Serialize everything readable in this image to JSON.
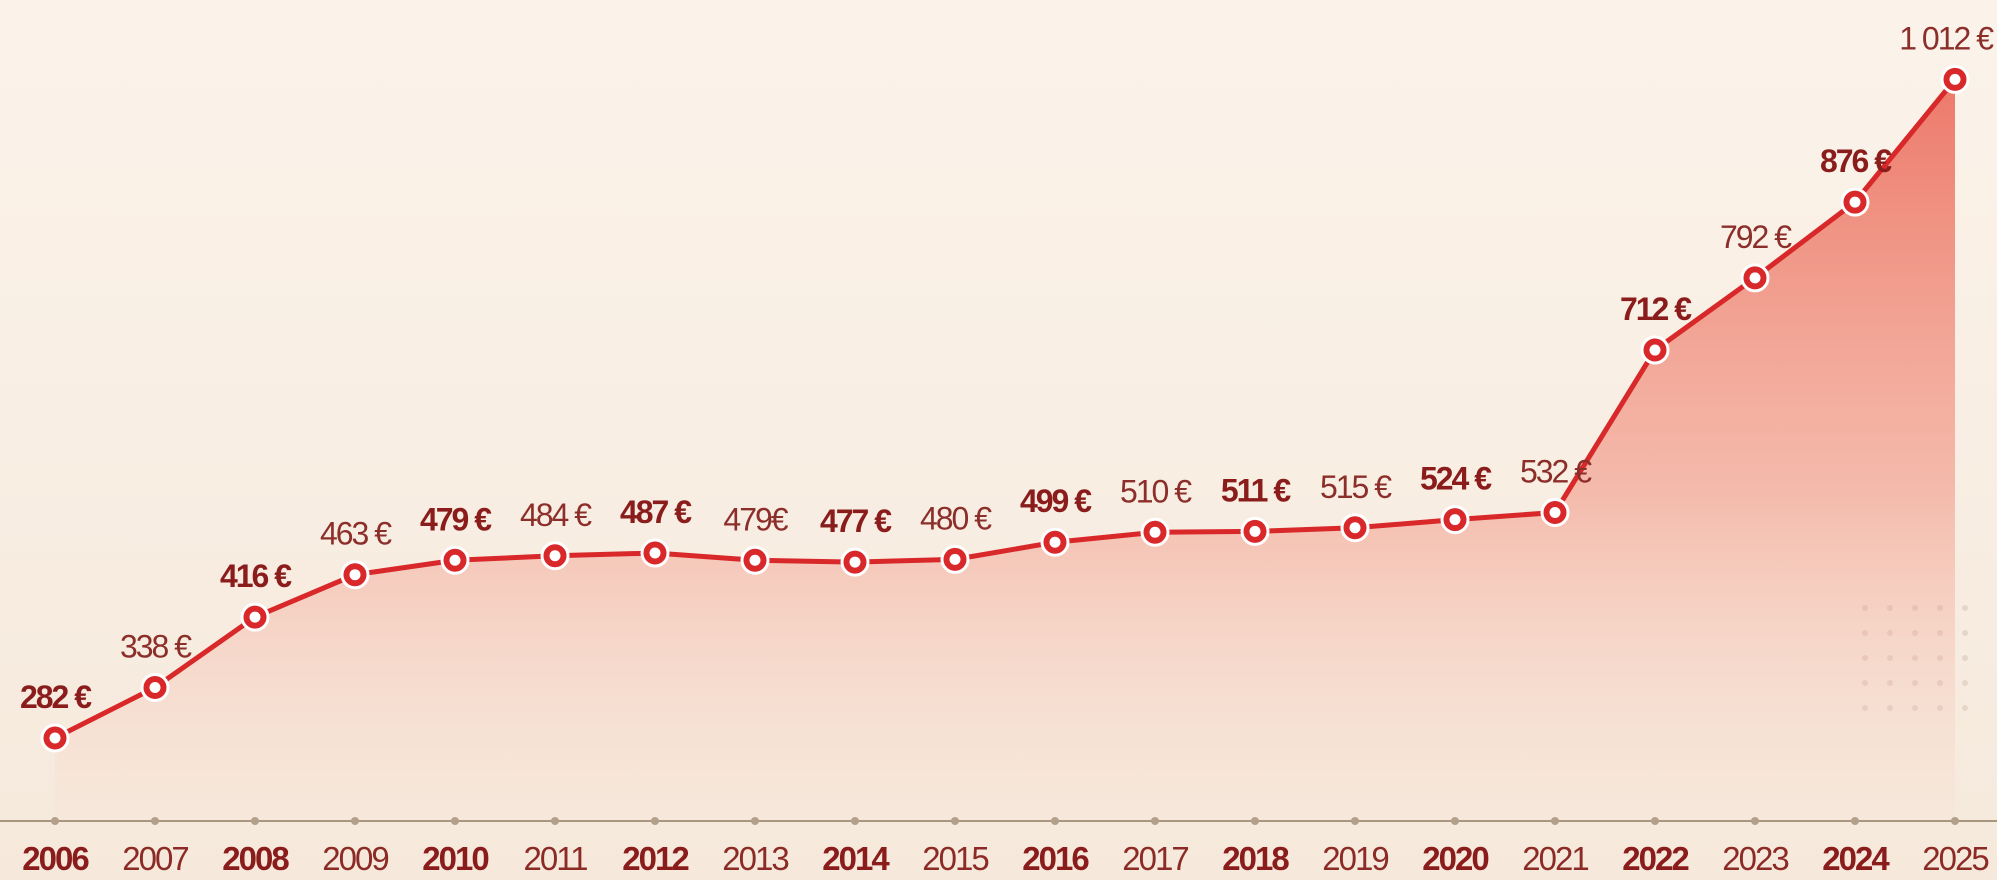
{
  "chart_data": {
    "type": "line",
    "categories": [
      "2006",
      "2007",
      "2008",
      "2009",
      "2010",
      "2011",
      "2012",
      "2013",
      "2014",
      "2015",
      "2016",
      "2017",
      "2018",
      "2019",
      "2020",
      "2021",
      "2022",
      "2023",
      "2024",
      "2025"
    ],
    "values": [
      282,
      338,
      416,
      463,
      479,
      484,
      487,
      479,
      477,
      480,
      499,
      510,
      511,
      515,
      524,
      532,
      712,
      792,
      876,
      1012
    ],
    "value_labels": [
      "282 €",
      "338 €",
      "416 €",
      "463 €",
      "479 €",
      "484 €",
      "487 €",
      "479€",
      "477 €",
      "480 €",
      "499 €",
      "510 €",
      "511 €",
      "515 €",
      "524 €",
      "532 €",
      "712 €",
      "792 €",
      "876 €",
      "1 012 €"
    ],
    "color": "#d8282a",
    "ylim": [
      190,
      1100
    ]
  }
}
